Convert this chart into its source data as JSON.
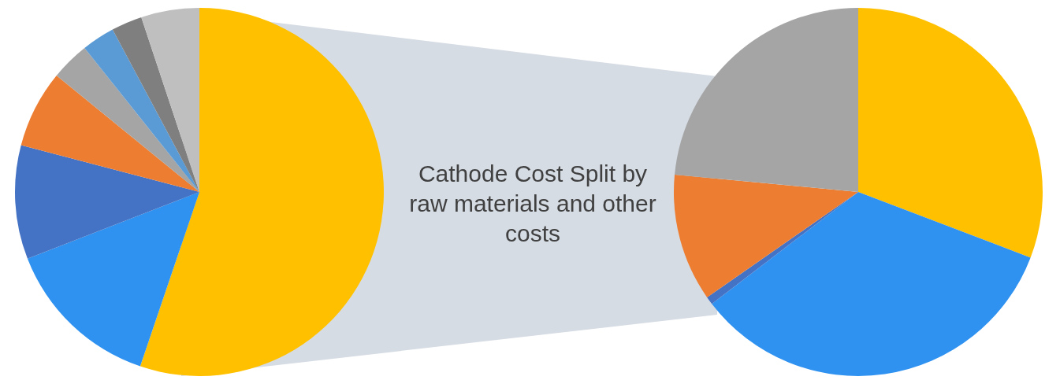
{
  "chart_data": [
    {
      "type": "pie",
      "categories": [
        null,
        null,
        null,
        null,
        null,
        null,
        null,
        null
      ],
      "values": [
        55.2,
        13.9,
        10.0,
        6.8,
        3.4,
        2.9,
        2.7,
        5.1
      ],
      "colors": [
        "#ffc000",
        "#2f92f0",
        "#4472c4",
        "#ed7d31",
        "#a5a5a5",
        "#5b9bd5",
        "#7f7f7f",
        "#bfbfbf"
      ]
    },
    {
      "type": "pie",
      "title": "Cathode Cost Split by raw materials and other costs",
      "categories": [
        null,
        null,
        null,
        null,
        null
      ],
      "values": [
        30.8,
        33.8,
        0.7,
        11.2,
        23.5
      ],
      "colors": [
        "#ffc000",
        "#3092f0",
        "#4472c4",
        "#ed7d31",
        "#a5a5a5"
      ]
    }
  ]
}
